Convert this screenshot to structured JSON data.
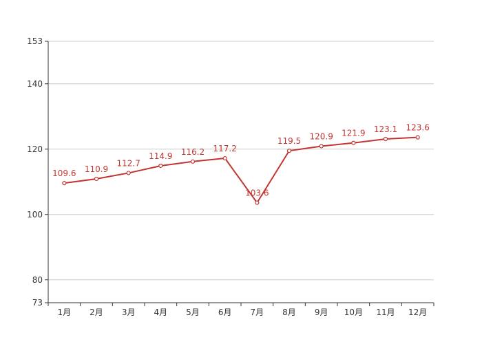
{
  "colors": {
    "line": "#c23531",
    "grid": "#cccccc",
    "axis": "#333333",
    "text": "#333333"
  },
  "chart_data": {
    "type": "line",
    "title": "",
    "xlabel": "",
    "ylabel": "",
    "categories": [
      "1月",
      "2月",
      "3月",
      "4月",
      "5月",
      "6月",
      "7月",
      "8月",
      "9月",
      "10月",
      "11月",
      "12月"
    ],
    "series": [
      {
        "values": [
          109.6,
          110.9,
          112.7,
          114.9,
          116.2,
          117.2,
          103.6,
          119.5,
          120.9,
          121.9,
          123.1,
          123.6
        ],
        "data_labels": [
          "109.6",
          "110.9",
          "112.7",
          "114.9",
          "116.2",
          "117.2",
          "103.6",
          "119.5",
          "120.9",
          "121.9",
          "123.1",
          "123.6"
        ]
      }
    ],
    "ylim": [
      73,
      153
    ],
    "yticks": [
      73,
      80,
      100,
      120,
      140,
      153
    ],
    "ytick_labels": [
      "73",
      "80",
      "100",
      "120",
      "140",
      "153"
    ],
    "grid": true,
    "legend": "none"
  }
}
